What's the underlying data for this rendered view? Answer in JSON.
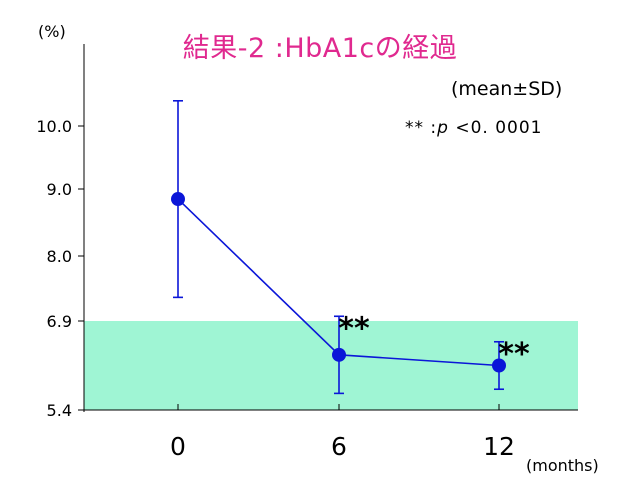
{
  "title": "結果-2 :HbA1cの経過",
  "y_unit": "(%)",
  "x_unit": "(months)",
  "legend": {
    "stat": "(mean±SD)",
    "stars": "**",
    "p_prefix": ":",
    "p_letter": "p",
    "p_value": "<0. 0001"
  },
  "colors": {
    "title": "#e0298f",
    "series": "#0b16d8",
    "target_band": "#9ff5d4"
  },
  "chart_data": {
    "type": "line",
    "title": "結果-2 :HbA1cの経過",
    "xlabel": "(months)",
    "ylabel": "(%)",
    "x": [
      0,
      6,
      12
    ],
    "x_tick_labels": [
      "0",
      "6",
      "12"
    ],
    "y_ticks": [
      5.4,
      6.9,
      8.0,
      9.0,
      10.0
    ],
    "y_tick_labels": [
      "5.4",
      "6.9",
      "8.0",
      "9.0",
      "10.0"
    ],
    "ylim": [
      5.4,
      11.0
    ],
    "series": [
      {
        "values": [
          8.85,
          6.33,
          6.15
        ],
        "sd": [
          1.55,
          0.65,
          0.4
        ],
        "significance": [
          "",
          "**",
          "**"
        ]
      }
    ],
    "target_band": {
      "from": 5.4,
      "to": 6.9
    }
  }
}
